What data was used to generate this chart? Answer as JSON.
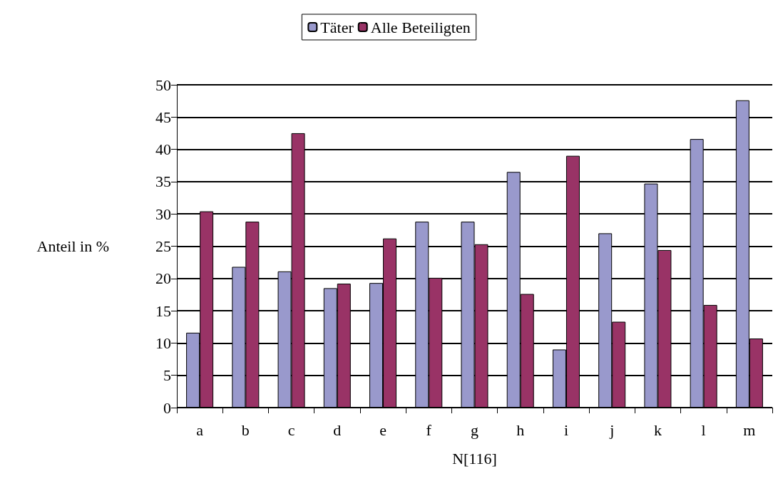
{
  "chart_data": {
    "type": "bar",
    "xlabel": "N[116]",
    "ylabel": "Anteil in %",
    "categories": [
      "a",
      "b",
      "c",
      "d",
      "e",
      "f",
      "g",
      "h",
      "i",
      "j",
      "k",
      "l",
      "m"
    ],
    "series": [
      {
        "name": "Täter",
        "color": "#9999cc",
        "values": [
          11.6,
          21.8,
          21.1,
          18.5,
          19.3,
          28.8,
          28.8,
          36.5,
          9.0,
          27.0,
          34.7,
          41.6,
          47.6
        ]
      },
      {
        "name": "Alle Beteiligten",
        "color": "#993366",
        "values": [
          30.4,
          28.8,
          42.5,
          19.2,
          26.2,
          20.1,
          25.3,
          17.6,
          39.0,
          13.3,
          24.4,
          15.9,
          10.7
        ]
      }
    ],
    "ylim": [
      0,
      50
    ],
    "yticks": [
      0,
      5,
      10,
      15,
      20,
      25,
      30,
      35,
      40,
      45,
      50
    ],
    "grid": "y",
    "legend": "top"
  }
}
